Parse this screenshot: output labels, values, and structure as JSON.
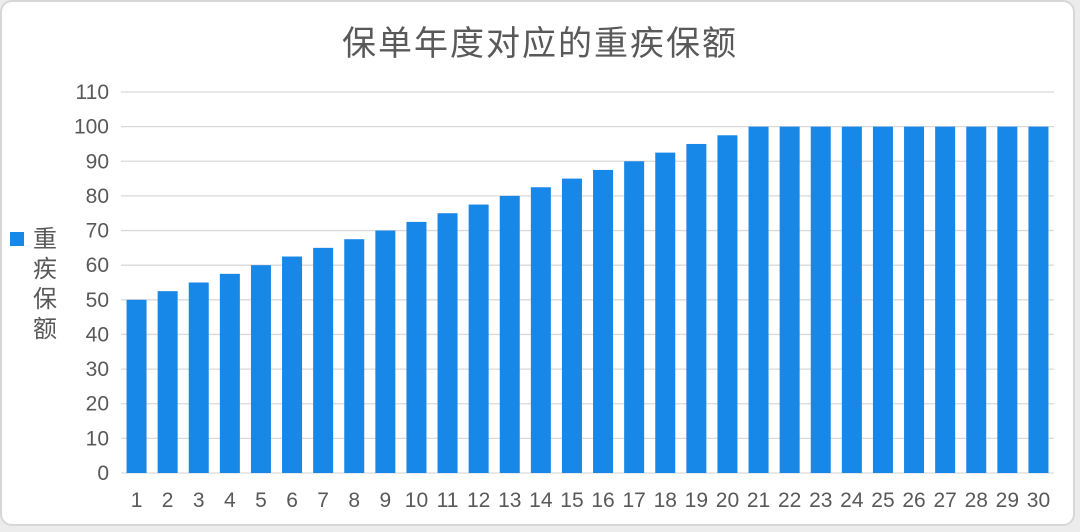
{
  "chart_data": {
    "type": "bar",
    "title": "保单年度对应的重疾保额",
    "categories": [
      1,
      2,
      3,
      4,
      5,
      6,
      7,
      8,
      9,
      10,
      11,
      12,
      13,
      14,
      15,
      16,
      17,
      18,
      19,
      20,
      21,
      22,
      23,
      24,
      25,
      26,
      27,
      28,
      29,
      30
    ],
    "series": [
      {
        "name": "重疾保额",
        "values": [
          50,
          52.5,
          55,
          57.5,
          60,
          62.5,
          65,
          67.5,
          70,
          72.5,
          75,
          77.5,
          80,
          82.5,
          85,
          87.5,
          90,
          92.5,
          95,
          97.5,
          100,
          100,
          100,
          100,
          100,
          100,
          100,
          100,
          100,
          100
        ]
      }
    ],
    "xlabel": "",
    "ylabel": "",
    "ylim": [
      0,
      110
    ],
    "ytick_step": 10,
    "yticks": [
      0,
      10,
      20,
      30,
      40,
      50,
      60,
      70,
      80,
      90,
      100,
      110
    ],
    "grid": true,
    "legend_position": "left",
    "colors": {
      "bar": "#1787E8",
      "grid": "#D9D9D9",
      "tick_label": "#595959",
      "title": "#595959"
    }
  }
}
